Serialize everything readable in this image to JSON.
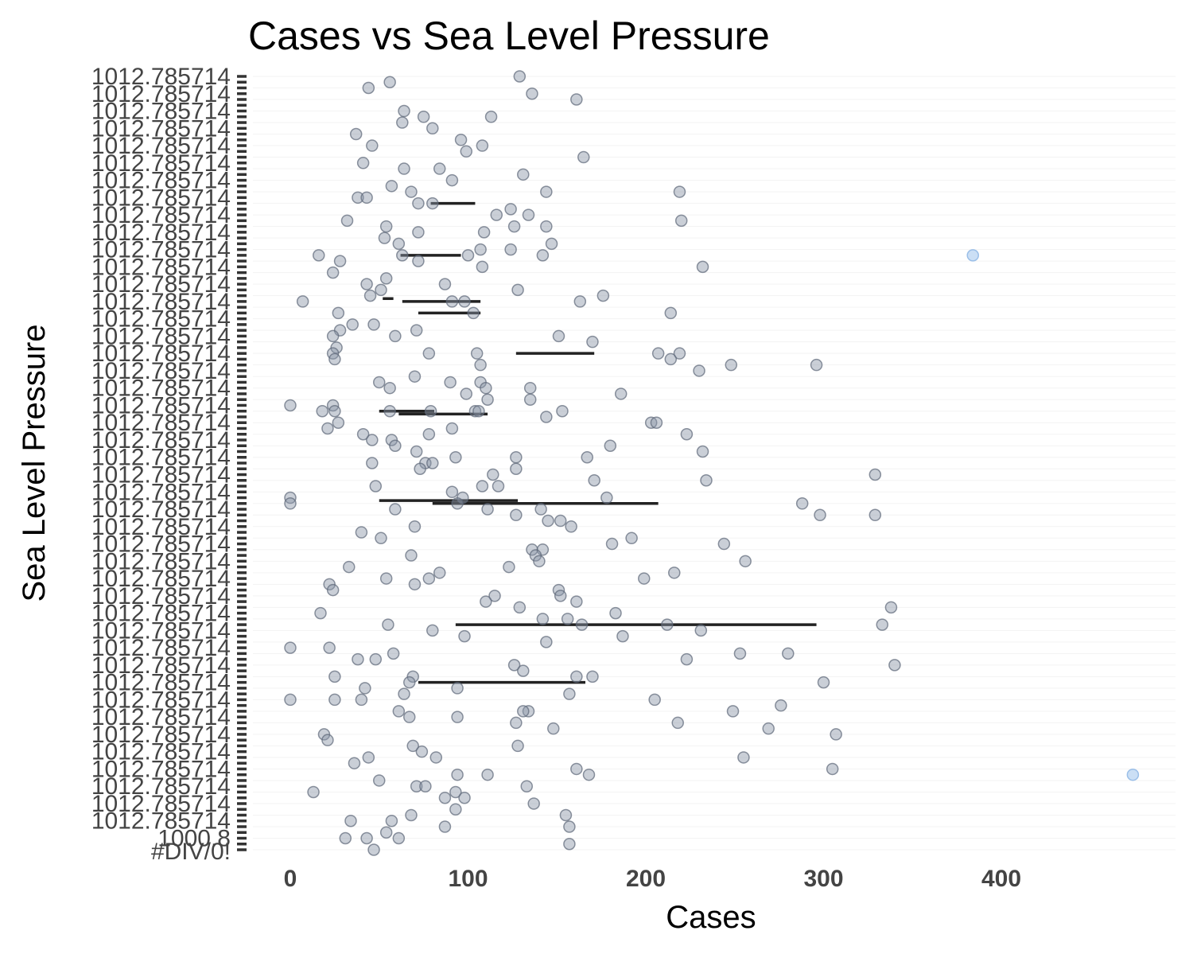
{
  "chart_data": {
    "type": "scatter",
    "title": "Cases vs Sea Level Pressure",
    "xlabel": "Cases",
    "ylabel": "Sea Level Pressure",
    "x_ticks": [
      0,
      100,
      200,
      300,
      400
    ],
    "xlim": [
      -25,
      495
    ],
    "y_axis_type": "categorical",
    "y_tick_labels_legible": [
      "1012.785714",
      "1000.8",
      "#DIV/0!"
    ],
    "point_color": "#8a94a6",
    "highlight_color": "#a9c9ef",
    "grid": false,
    "legend": "none",
    "points": [
      {
        "x": 56,
        "y": 1
      },
      {
        "x": 129,
        "y": 0
      },
      {
        "x": 44,
        "y": 2
      },
      {
        "x": 136,
        "y": 3
      },
      {
        "x": 161,
        "y": 4
      },
      {
        "x": 64,
        "y": 6
      },
      {
        "x": 75,
        "y": 7
      },
      {
        "x": 113,
        "y": 7
      },
      {
        "x": 63,
        "y": 8
      },
      {
        "x": 80,
        "y": 9
      },
      {
        "x": 37,
        "y": 10
      },
      {
        "x": 46,
        "y": 12
      },
      {
        "x": 96,
        "y": 11
      },
      {
        "x": 108,
        "y": 12
      },
      {
        "x": 99,
        "y": 13
      },
      {
        "x": 165,
        "y": 14
      },
      {
        "x": 41,
        "y": 15
      },
      {
        "x": 64,
        "y": 16
      },
      {
        "x": 84,
        "y": 16
      },
      {
        "x": 131,
        "y": 17
      },
      {
        "x": 91,
        "y": 18
      },
      {
        "x": 57,
        "y": 19
      },
      {
        "x": 68,
        "y": 20
      },
      {
        "x": 219,
        "y": 20
      },
      {
        "x": 144,
        "y": 20
      },
      {
        "x": 38,
        "y": 21
      },
      {
        "x": 43,
        "y": 21
      },
      {
        "x": 72,
        "y": 22
      },
      {
        "x": 80,
        "y": 22
      },
      {
        "x": 124,
        "y": 23
      },
      {
        "x": 116,
        "y": 24
      },
      {
        "x": 134,
        "y": 24
      },
      {
        "x": 32,
        "y": 25
      },
      {
        "x": 54,
        "y": 26
      },
      {
        "x": 220,
        "y": 25
      },
      {
        "x": 126,
        "y": 26
      },
      {
        "x": 144,
        "y": 26
      },
      {
        "x": 72,
        "y": 27
      },
      {
        "x": 109,
        "y": 27
      },
      {
        "x": 53,
        "y": 28
      },
      {
        "x": 61,
        "y": 29
      },
      {
        "x": 147,
        "y": 29
      },
      {
        "x": 124,
        "y": 30
      },
      {
        "x": 16,
        "y": 31
      },
      {
        "x": 63,
        "y": 31
      },
      {
        "x": 100,
        "y": 31
      },
      {
        "x": 107,
        "y": 30
      },
      {
        "x": 142,
        "y": 31
      },
      {
        "x": 28,
        "y": 32
      },
      {
        "x": 72,
        "y": 32
      },
      {
        "x": 108,
        "y": 33
      },
      {
        "x": 24,
        "y": 34
      },
      {
        "x": 232,
        "y": 33
      },
      {
        "x": 54,
        "y": 35
      },
      {
        "x": 43,
        "y": 36
      },
      {
        "x": 87,
        "y": 36
      },
      {
        "x": 51,
        "y": 37
      },
      {
        "x": 128,
        "y": 37
      },
      {
        "x": 176,
        "y": 38
      },
      {
        "x": 7,
        "y": 39
      },
      {
        "x": 45,
        "y": 38
      },
      {
        "x": 91,
        "y": 39
      },
      {
        "x": 98,
        "y": 39
      },
      {
        "x": 163,
        "y": 39
      },
      {
        "x": 27,
        "y": 41
      },
      {
        "x": 103,
        "y": 41
      },
      {
        "x": 214,
        "y": 41
      },
      {
        "x": 35,
        "y": 43
      },
      {
        "x": 47,
        "y": 43
      },
      {
        "x": 28,
        "y": 44
      },
      {
        "x": 71,
        "y": 44
      },
      {
        "x": 24,
        "y": 45
      },
      {
        "x": 59,
        "y": 45
      },
      {
        "x": 151,
        "y": 45
      },
      {
        "x": 170,
        "y": 46
      },
      {
        "x": 26,
        "y": 47
      },
      {
        "x": 24,
        "y": 48
      },
      {
        "x": 78,
        "y": 48
      },
      {
        "x": 105,
        "y": 48
      },
      {
        "x": 207,
        "y": 48
      },
      {
        "x": 219,
        "y": 48
      },
      {
        "x": 25,
        "y": 49
      },
      {
        "x": 214,
        "y": 49
      },
      {
        "x": 107,
        "y": 50
      },
      {
        "x": 248,
        "y": 50
      },
      {
        "x": 230,
        "y": 51
      },
      {
        "x": 296,
        "y": 50
      },
      {
        "x": 70,
        "y": 52
      },
      {
        "x": 50,
        "y": 53
      },
      {
        "x": 90,
        "y": 53
      },
      {
        "x": 107,
        "y": 53
      },
      {
        "x": 56,
        "y": 54
      },
      {
        "x": 110,
        "y": 54
      },
      {
        "x": 135,
        "y": 54
      },
      {
        "x": 186,
        "y": 55
      },
      {
        "x": 99,
        "y": 55
      },
      {
        "x": 135,
        "y": 56
      },
      {
        "x": 111,
        "y": 56
      },
      {
        "x": 0,
        "y": 57
      },
      {
        "x": 24,
        "y": 57
      },
      {
        "x": 25,
        "y": 58
      },
      {
        "x": 18,
        "y": 58
      },
      {
        "x": 56,
        "y": 58
      },
      {
        "x": 79,
        "y": 58
      },
      {
        "x": 104,
        "y": 58
      },
      {
        "x": 106,
        "y": 58
      },
      {
        "x": 153,
        "y": 58
      },
      {
        "x": 144,
        "y": 59
      },
      {
        "x": 27,
        "y": 60
      },
      {
        "x": 203,
        "y": 60
      },
      {
        "x": 206,
        "y": 60
      },
      {
        "x": 91,
        "y": 61
      },
      {
        "x": 21,
        "y": 61
      },
      {
        "x": 41,
        "y": 62
      },
      {
        "x": 78,
        "y": 62
      },
      {
        "x": 223,
        "y": 62
      },
      {
        "x": 46,
        "y": 63
      },
      {
        "x": 57,
        "y": 63
      },
      {
        "x": 59,
        "y": 64
      },
      {
        "x": 180,
        "y": 64
      },
      {
        "x": 71,
        "y": 65
      },
      {
        "x": 93,
        "y": 66
      },
      {
        "x": 127,
        "y": 66
      },
      {
        "x": 167,
        "y": 66
      },
      {
        "x": 232,
        "y": 65
      },
      {
        "x": 46,
        "y": 67
      },
      {
        "x": 76,
        "y": 67
      },
      {
        "x": 80,
        "y": 67
      },
      {
        "x": 127,
        "y": 68
      },
      {
        "x": 73,
        "y": 68
      },
      {
        "x": 114,
        "y": 69
      },
      {
        "x": 171,
        "y": 70
      },
      {
        "x": 234,
        "y": 70
      },
      {
        "x": 329,
        "y": 69
      },
      {
        "x": 48,
        "y": 71
      },
      {
        "x": 108,
        "y": 71
      },
      {
        "x": 117,
        "y": 71
      },
      {
        "x": 91,
        "y": 72
      },
      {
        "x": 0,
        "y": 73
      },
      {
        "x": 97,
        "y": 73
      },
      {
        "x": 94,
        "y": 74
      },
      {
        "x": 178,
        "y": 73
      },
      {
        "x": 288,
        "y": 74
      },
      {
        "x": 0,
        "y": 74
      },
      {
        "x": 59,
        "y": 75
      },
      {
        "x": 111,
        "y": 75
      },
      {
        "x": 141,
        "y": 75
      },
      {
        "x": 298,
        "y": 76
      },
      {
        "x": 329,
        "y": 76
      },
      {
        "x": 127,
        "y": 76
      },
      {
        "x": 152,
        "y": 77
      },
      {
        "x": 145,
        "y": 77
      },
      {
        "x": 70,
        "y": 78
      },
      {
        "x": 158,
        "y": 78
      },
      {
        "x": 40,
        "y": 79
      },
      {
        "x": 51,
        "y": 80
      },
      {
        "x": 192,
        "y": 80
      },
      {
        "x": 244,
        "y": 81
      },
      {
        "x": 181,
        "y": 81
      },
      {
        "x": 136,
        "y": 82
      },
      {
        "x": 142,
        "y": 82
      },
      {
        "x": 68,
        "y": 83
      },
      {
        "x": 138,
        "y": 83
      },
      {
        "x": 256,
        "y": 84
      },
      {
        "x": 140,
        "y": 84
      },
      {
        "x": 123,
        "y": 85
      },
      {
        "x": 33,
        "y": 85
      },
      {
        "x": 84,
        "y": 86
      },
      {
        "x": 216,
        "y": 86
      },
      {
        "x": 54,
        "y": 87
      },
      {
        "x": 78,
        "y": 87
      },
      {
        "x": 199,
        "y": 87
      },
      {
        "x": 22,
        "y": 88
      },
      {
        "x": 70,
        "y": 88
      },
      {
        "x": 24,
        "y": 89
      },
      {
        "x": 151,
        "y": 89
      },
      {
        "x": 152,
        "y": 90
      },
      {
        "x": 115,
        "y": 90
      },
      {
        "x": 161,
        "y": 91
      },
      {
        "x": 110,
        "y": 91
      },
      {
        "x": 129,
        "y": 92
      },
      {
        "x": 338,
        "y": 92
      },
      {
        "x": 17,
        "y": 93
      },
      {
        "x": 183,
        "y": 93
      },
      {
        "x": 142,
        "y": 94
      },
      {
        "x": 156,
        "y": 94
      },
      {
        "x": 212,
        "y": 95
      },
      {
        "x": 55,
        "y": 95
      },
      {
        "x": 164,
        "y": 95
      },
      {
        "x": 333,
        "y": 95
      },
      {
        "x": 80,
        "y": 96
      },
      {
        "x": 231,
        "y": 96
      },
      {
        "x": 98,
        "y": 97
      },
      {
        "x": 187,
        "y": 97
      },
      {
        "x": 144,
        "y": 98
      },
      {
        "x": 0,
        "y": 99
      },
      {
        "x": 22,
        "y": 99
      },
      {
        "x": 58,
        "y": 100
      },
      {
        "x": 253,
        "y": 100
      },
      {
        "x": 280,
        "y": 100
      },
      {
        "x": 38,
        "y": 101
      },
      {
        "x": 48,
        "y": 101
      },
      {
        "x": 223,
        "y": 101
      },
      {
        "x": 126,
        "y": 102
      },
      {
        "x": 340,
        "y": 102
      },
      {
        "x": 131,
        "y": 103
      },
      {
        "x": 25,
        "y": 104
      },
      {
        "x": 69,
        "y": 104
      },
      {
        "x": 170,
        "y": 104
      },
      {
        "x": 161,
        "y": 104
      },
      {
        "x": 67,
        "y": 105
      },
      {
        "x": 42,
        "y": 106
      },
      {
        "x": 94,
        "y": 106
      },
      {
        "x": 300,
        "y": 105
      },
      {
        "x": 64,
        "y": 107
      },
      {
        "x": 157,
        "y": 107
      },
      {
        "x": 205,
        "y": 108
      },
      {
        "x": 0,
        "y": 108
      },
      {
        "x": 25,
        "y": 108
      },
      {
        "x": 40,
        "y": 108
      },
      {
        "x": 276,
        "y": 109
      },
      {
        "x": 61,
        "y": 110
      },
      {
        "x": 134,
        "y": 110
      },
      {
        "x": 131,
        "y": 110
      },
      {
        "x": 249,
        "y": 110
      },
      {
        "x": 67,
        "y": 111
      },
      {
        "x": 94,
        "y": 111
      },
      {
        "x": 127,
        "y": 112
      },
      {
        "x": 148,
        "y": 113
      },
      {
        "x": 218,
        "y": 112
      },
      {
        "x": 269,
        "y": 113
      },
      {
        "x": 19,
        "y": 114
      },
      {
        "x": 21,
        "y": 115
      },
      {
        "x": 307,
        "y": 114
      },
      {
        "x": 69,
        "y": 116
      },
      {
        "x": 128,
        "y": 116
      },
      {
        "x": 74,
        "y": 117
      },
      {
        "x": 82,
        "y": 118
      },
      {
        "x": 44,
        "y": 118
      },
      {
        "x": 255,
        "y": 118
      },
      {
        "x": 36,
        "y": 119
      },
      {
        "x": 161,
        "y": 120
      },
      {
        "x": 305,
        "y": 120
      },
      {
        "x": 94,
        "y": 121
      },
      {
        "x": 111,
        "y": 121
      },
      {
        "x": 168,
        "y": 121
      },
      {
        "x": 50,
        "y": 122
      },
      {
        "x": 71,
        "y": 123
      },
      {
        "x": 76,
        "y": 123
      },
      {
        "x": 133,
        "y": 123
      },
      {
        "x": 93,
        "y": 124
      },
      {
        "x": 13,
        "y": 124
      },
      {
        "x": 98,
        "y": 125
      },
      {
        "x": 87,
        "y": 125
      },
      {
        "x": 137,
        "y": 126
      },
      {
        "x": 93,
        "y": 127
      },
      {
        "x": 68,
        "y": 128
      },
      {
        "x": 155,
        "y": 128
      },
      {
        "x": 34,
        "y": 129
      },
      {
        "x": 57,
        "y": 129
      },
      {
        "x": 87,
        "y": 130
      },
      {
        "x": 157,
        "y": 130
      },
      {
        "x": 54,
        "y": 131
      },
      {
        "x": 61,
        "y": 132
      },
      {
        "x": 31,
        "y": 132
      },
      {
        "x": 43,
        "y": 132
      },
      {
        "x": 157,
        "y": 133
      },
      {
        "x": 47,
        "y": 134
      }
    ],
    "highlight_points": [
      {
        "x": 384,
        "y": 31
      },
      {
        "x": 474,
        "y": 121
      }
    ],
    "segments": [
      {
        "x1": 79,
        "x2": 104,
        "y": 22
      },
      {
        "x1": 62,
        "x2": 96,
        "y": 31
      },
      {
        "x1": 52,
        "x2": 58,
        "y": 38.5
      },
      {
        "x1": 63,
        "x2": 107,
        "y": 39
      },
      {
        "x1": 72,
        "x2": 107,
        "y": 41
      },
      {
        "x1": 127,
        "x2": 171,
        "y": 48
      },
      {
        "x1": 50,
        "x2": 81,
        "y": 58
      },
      {
        "x1": 61,
        "x2": 111,
        "y": 58.5
      },
      {
        "x1": 50,
        "x2": 128,
        "y": 73.5
      },
      {
        "x1": 80,
        "x2": 207,
        "y": 74
      },
      {
        "x1": 93,
        "x2": 296,
        "y": 95
      },
      {
        "x1": 72,
        "x2": 166,
        "y": 105
      }
    ]
  }
}
